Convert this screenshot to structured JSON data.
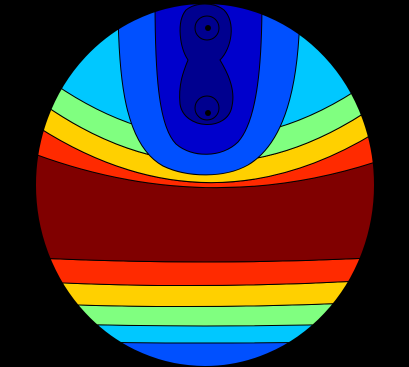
{
  "figure": {
    "background": "#000000",
    "outline_color": "#000000",
    "band_colors": [
      "#00008f",
      "#0000cc",
      "#0050ff",
      "#00c8ff",
      "#80ff80",
      "#ffd000",
      "#ff2a00",
      "#800000"
    ],
    "source_markers": 2,
    "marker_color": "#000000"
  }
}
